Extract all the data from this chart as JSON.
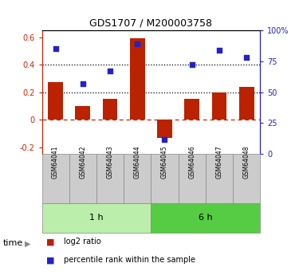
{
  "title": "GDS1707 / M200003758",
  "categories": [
    "GSM64041",
    "GSM64042",
    "GSM64043",
    "GSM64044",
    "GSM64045",
    "GSM64046",
    "GSM64047",
    "GSM64048"
  ],
  "log2_ratio": [
    0.27,
    0.1,
    0.15,
    0.59,
    -0.13,
    0.15,
    0.2,
    0.24
  ],
  "percentile_rank": [
    85,
    57,
    67,
    89,
    12,
    72,
    84,
    78
  ],
  "bar_color": "#bb2200",
  "dot_color": "#2222cc",
  "ylim_left": [
    -0.25,
    0.65
  ],
  "ylim_right": [
    0,
    100
  ],
  "yticks_left": [
    -0.2,
    0.0,
    0.2,
    0.4,
    0.6
  ],
  "yticks_right": [
    0,
    25,
    50,
    75,
    100
  ],
  "ytick_labels_left": [
    "-0.2",
    "0",
    "0.2",
    "0.4",
    "0.6"
  ],
  "ytick_labels_right": [
    "0",
    "25",
    "50",
    "75",
    "100%"
  ],
  "hlines_y": [
    0.4,
    0.2
  ],
  "hline_zero_color": "#cc2200",
  "hline_dotted_color": "#000000",
  "group1_label": "1 h",
  "group2_label": "6 h",
  "group1_color": "#bbeeaa",
  "group2_color": "#55cc44",
  "time_label": "time",
  "legend_log2": "log2 ratio",
  "legend_pct": "percentile rank within the sample",
  "left_tick_color": "#cc2200",
  "right_tick_color": "#2222cc",
  "bar_width": 0.55,
  "title_fontsize": 9
}
